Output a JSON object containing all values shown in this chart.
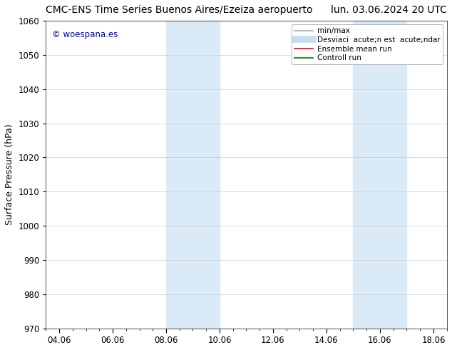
{
  "title_left": "CMC-ENS Time Series Buenos Aires/Ezeiza aeropuerto",
  "title_right": "lun. 03.06.2024 20 UTC",
  "ylabel": "Surface Pressure (hPa)",
  "ylim": [
    970,
    1060
  ],
  "yticks": [
    970,
    980,
    990,
    1000,
    1010,
    1020,
    1030,
    1040,
    1050,
    1060
  ],
  "xtick_labels": [
    "04.06",
    "06.06",
    "08.06",
    "10.06",
    "12.06",
    "14.06",
    "16.06",
    "18.06"
  ],
  "xtick_positions": [
    4,
    6,
    8,
    10,
    12,
    14,
    16,
    18
  ],
  "xlim": [
    3.5,
    18.5
  ],
  "shaded_regions": [
    {
      "x_start": 8.0,
      "x_end": 10.0,
      "color": "#daeaf7"
    },
    {
      "x_start": 15.0,
      "x_end": 17.0,
      "color": "#daeaf7"
    }
  ],
  "watermark_text": "© woespana.es",
  "watermark_color": "#0000cc",
  "legend_entries": [
    {
      "label": "min/max",
      "color": "#aaaaaa",
      "lw": 1.2,
      "type": "line"
    },
    {
      "label": "Desviaci  acute;n est  acute;ndar",
      "color": "#c8ddf0",
      "lw": 7,
      "type": "line"
    },
    {
      "label": "Ensemble mean run",
      "color": "red",
      "lw": 1.2,
      "type": "line"
    },
    {
      "label": "Controll run",
      "color": "green",
      "lw": 1.2,
      "type": "line"
    }
  ],
  "bg_color": "#ffffff",
  "grid_color": "#cccccc",
  "title_fontsize": 10,
  "tick_fontsize": 8.5,
  "ylabel_fontsize": 9,
  "legend_fontsize": 7.5
}
